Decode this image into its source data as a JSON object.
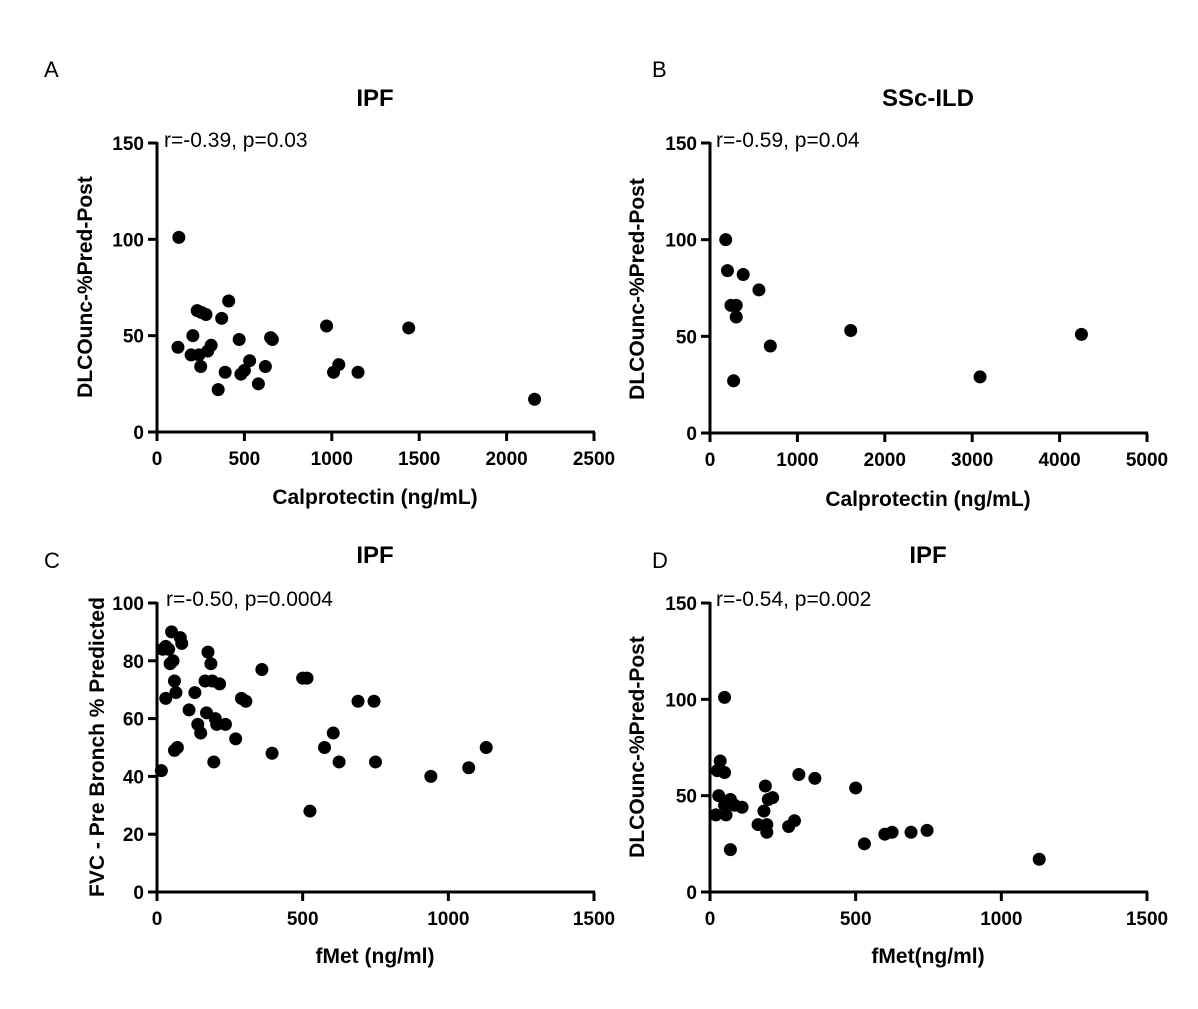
{
  "chart_data": [
    {
      "type": "scatter",
      "panel": "A",
      "title": "IPF",
      "xlabel": "Calprotectin (ng/mL)",
      "ylabel": "DLCOunc-%Pred-Post",
      "xlim": [
        0,
        2500
      ],
      "ylim": [
        0,
        150
      ],
      "xticks": [
        0,
        500,
        1000,
        1500,
        2000,
        2500
      ],
      "yticks": [
        0,
        50,
        100,
        150
      ],
      "annotation": "r=-0.39, p=0.03",
      "points": [
        [
          125,
          101
        ],
        [
          120,
          44
        ],
        [
          195,
          40
        ],
        [
          205,
          50
        ],
        [
          230,
          63
        ],
        [
          255,
          62
        ],
        [
          280,
          61
        ],
        [
          240,
          40
        ],
        [
          250,
          34
        ],
        [
          290,
          42
        ],
        [
          310,
          45
        ],
        [
          370,
          59
        ],
        [
          390,
          31
        ],
        [
          350,
          22
        ],
        [
          410,
          68
        ],
        [
          470,
          48
        ],
        [
          480,
          30
        ],
        [
          500,
          32
        ],
        [
          530,
          37
        ],
        [
          580,
          25
        ],
        [
          620,
          34
        ],
        [
          650,
          49
        ],
        [
          660,
          48
        ],
        [
          970,
          55
        ],
        [
          1010,
          31
        ],
        [
          1040,
          35
        ],
        [
          1150,
          31
        ],
        [
          1440,
          54
        ],
        [
          2160,
          17
        ]
      ]
    },
    {
      "type": "scatter",
      "panel": "B",
      "title": "SSc-ILD",
      "xlabel": "Calprotectin (ng/mL)",
      "ylabel": "DLCOunc-%Pred-Post",
      "xlim": [
        0,
        5000
      ],
      "ylim": [
        0,
        150
      ],
      "xticks": [
        0,
        1000,
        2000,
        3000,
        4000,
        5000
      ],
      "yticks": [
        0,
        50,
        100,
        150
      ],
      "annotation": "r=-0.59, p=0.04",
      "points": [
        [
          180,
          100
        ],
        [
          200,
          84
        ],
        [
          380,
          82
        ],
        [
          560,
          74
        ],
        [
          240,
          66
        ],
        [
          300,
          66
        ],
        [
          300,
          60
        ],
        [
          690,
          45
        ],
        [
          270,
          27
        ],
        [
          1610,
          53
        ],
        [
          3090,
          29
        ],
        [
          4250,
          51
        ]
      ]
    },
    {
      "type": "scatter",
      "panel": "C",
      "title": "IPF",
      "xlabel": "fMet (ng/ml)",
      "ylabel": "FVC - Pre Bronch % Predicted",
      "xlim": [
        0,
        1500
      ],
      "ylim": [
        0,
        100
      ],
      "xticks": [
        0,
        500,
        1000,
        1500
      ],
      "yticks": [
        0,
        20,
        40,
        60,
        80,
        100
      ],
      "annotation": "r=-0.50, p=0.0004",
      "points": [
        [
          15,
          42
        ],
        [
          20,
          84
        ],
        [
          30,
          85
        ],
        [
          40,
          84
        ],
        [
          50,
          90
        ],
        [
          45,
          79
        ],
        [
          55,
          80
        ],
        [
          60,
          73
        ],
        [
          80,
          88
        ],
        [
          85,
          86
        ],
        [
          30,
          67
        ],
        [
          65,
          69
        ],
        [
          70,
          50
        ],
        [
          60,
          49
        ],
        [
          110,
          63
        ],
        [
          130,
          69
        ],
        [
          140,
          58
        ],
        [
          150,
          55
        ],
        [
          165,
          73
        ],
        [
          170,
          62
        ],
        [
          175,
          83
        ],
        [
          185,
          79
        ],
        [
          190,
          73
        ],
        [
          195,
          45
        ],
        [
          200,
          60
        ],
        [
          205,
          58
        ],
        [
          215,
          72
        ],
        [
          235,
          58
        ],
        [
          270,
          53
        ],
        [
          290,
          67
        ],
        [
          305,
          66
        ],
        [
          360,
          77
        ],
        [
          395,
          48
        ],
        [
          500,
          74
        ],
        [
          515,
          74
        ],
        [
          525,
          28
        ],
        [
          575,
          50
        ],
        [
          605,
          55
        ],
        [
          625,
          45
        ],
        [
          690,
          66
        ],
        [
          745,
          66
        ],
        [
          750,
          45
        ],
        [
          940,
          40
        ],
        [
          1070,
          43
        ],
        [
          1130,
          50
        ]
      ]
    },
    {
      "type": "scatter",
      "panel": "D",
      "title": "IPF",
      "xlabel": "fMet(ng/ml)",
      "ylabel": "DLCOunc-%Pred-Post",
      "xlim": [
        0,
        1500
      ],
      "ylim": [
        0,
        150
      ],
      "xticks": [
        0,
        500,
        1000,
        1500
      ],
      "yticks": [
        0,
        50,
        100,
        150
      ],
      "annotation": "r=-0.54, p=0.002",
      "points": [
        [
          50,
          101
        ],
        [
          35,
          68
        ],
        [
          25,
          63
        ],
        [
          50,
          62
        ],
        [
          30,
          50
        ],
        [
          50,
          45
        ],
        [
          55,
          40
        ],
        [
          20,
          40
        ],
        [
          70,
          48
        ],
        [
          70,
          22
        ],
        [
          85,
          45
        ],
        [
          110,
          44
        ],
        [
          165,
          35
        ],
        [
          185,
          42
        ],
        [
          190,
          55
        ],
        [
          195,
          35
        ],
        [
          195,
          31
        ],
        [
          200,
          48
        ],
        [
          215,
          49
        ],
        [
          270,
          34
        ],
        [
          290,
          37
        ],
        [
          305,
          61
        ],
        [
          360,
          59
        ],
        [
          500,
          54
        ],
        [
          530,
          25
        ],
        [
          600,
          30
        ],
        [
          625,
          31
        ],
        [
          690,
          31
        ],
        [
          745,
          32
        ],
        [
          1130,
          17
        ]
      ]
    }
  ]
}
